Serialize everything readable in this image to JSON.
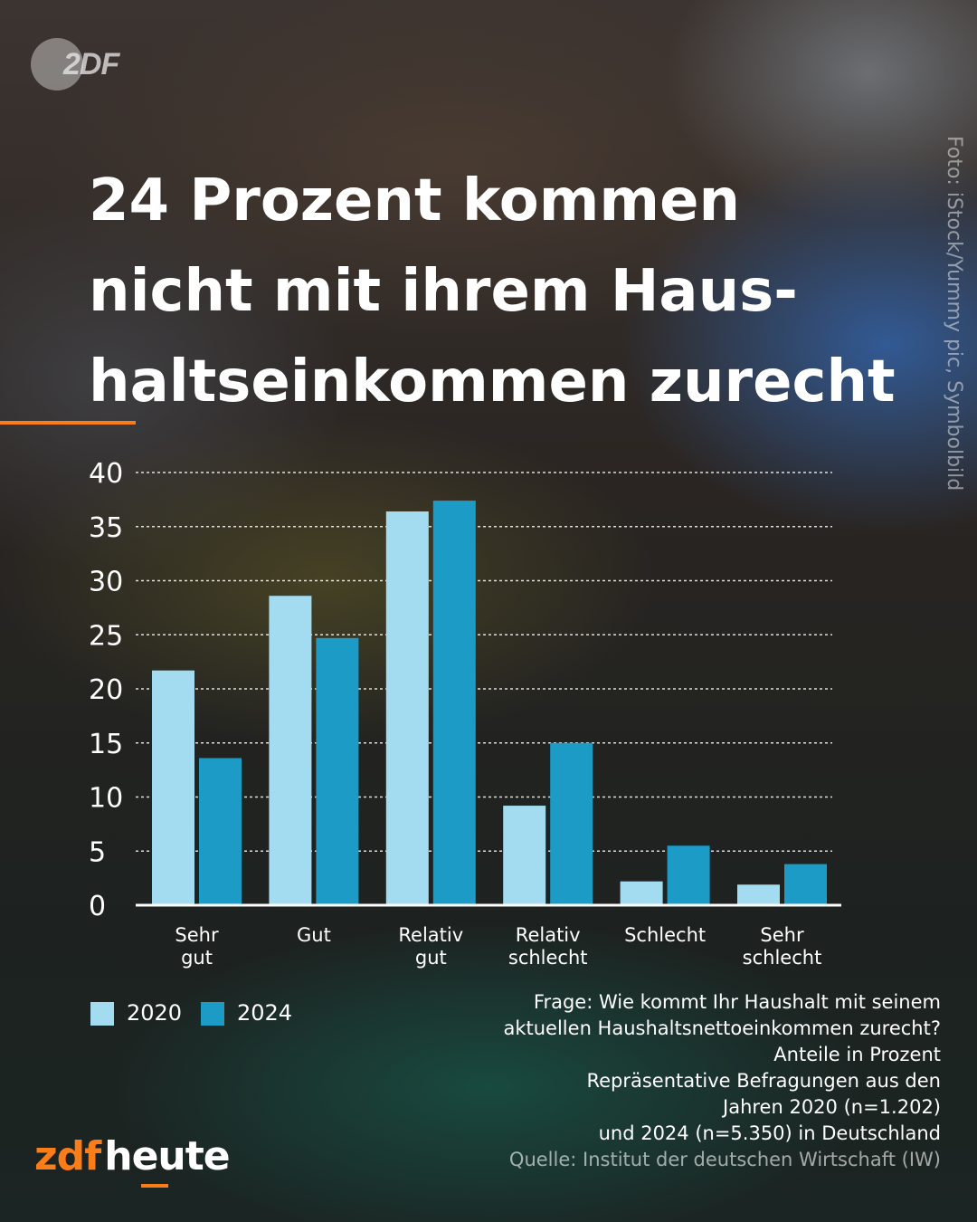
{
  "brand_top": {
    "text": "2DF"
  },
  "headline": {
    "lines": [
      "24 Prozent kommen",
      "nicht mit ihrem Haus-",
      "haltseinkommen zurecht"
    ]
  },
  "photo_credit": "Foto: iStock/Yummy pic, Symbolbild",
  "colors": {
    "accent": "#fa7d19",
    "series_2020": "#a3dcf0",
    "series_2024": "#1c9bc6"
  },
  "chart_data": {
    "type": "bar",
    "categories": [
      [
        "Sehr",
        "gut"
      ],
      [
        "Gut"
      ],
      [
        "Relativ",
        "gut"
      ],
      [
        "Relativ",
        "schlecht"
      ],
      [
        "Schlecht"
      ],
      [
        "Sehr",
        "schlecht"
      ]
    ],
    "series": [
      {
        "name": "2020",
        "color": "#a3dcf0",
        "values": [
          21.7,
          28.6,
          36.4,
          9.2,
          2.2,
          1.9
        ]
      },
      {
        "name": "2024",
        "color": "#1c9bc6",
        "values": [
          13.6,
          24.7,
          37.4,
          15.0,
          5.5,
          3.8
        ]
      }
    ],
    "ylim": [
      0,
      40
    ],
    "yticks": [
      0,
      5,
      10,
      15,
      20,
      25,
      30,
      35,
      40
    ],
    "grid": true,
    "legend": "bottom-left"
  },
  "notes": [
    "Frage: Wie kommt Ihr Haushalt mit seinem",
    "aktuellen Haushaltsnettoeinkommen zurecht?",
    "Anteile in Prozent",
    "Repräsentative Befragungen aus den",
    "Jahren 2020 (n=1.202)",
    "und 2024 (n=5.350) in Deutschland"
  ],
  "source": "Quelle: Institut der deutschen Wirtschaft (IW)",
  "brand_bottom": {
    "part1": "zdf",
    "part2": "heute"
  }
}
